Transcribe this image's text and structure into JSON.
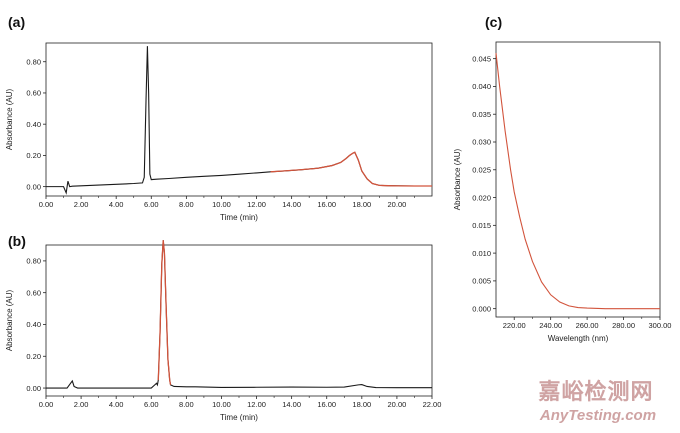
{
  "chart_data": [
    {
      "panel_label": "(a)",
      "type": "line",
      "xlabel": "Time (min)",
      "ylabel": "Absorbance (AU)",
      "xlim": [
        0,
        22
      ],
      "ylim": [
        -0.06,
        0.92
      ],
      "xticks": [
        "0.00",
        "2.00",
        "4.00",
        "6.00",
        "8.00",
        "10.00",
        "12.00",
        "14.00",
        "16.00",
        "18.00",
        "20.00"
      ],
      "yticks": [
        "0.00",
        "0.20",
        "0.40",
        "0.60",
        "0.80"
      ],
      "colors": {
        "axis": "#222222",
        "trace": "#1a1a1a",
        "highlight": "#d2543c"
      },
      "highlight_from_x": 12.8,
      "series": [
        {
          "x": [
            0,
            1.0,
            1.15,
            1.25,
            1.35,
            1.5,
            2.0,
            3.0,
            4.0,
            5.0,
            5.5,
            5.6,
            5.7,
            5.78,
            5.85,
            5.92,
            6.0,
            6.3,
            7.0,
            8.0,
            9.0,
            10.0,
            11.0,
            12.0,
            12.8,
            13.5,
            14.5,
            15.5,
            16.3,
            16.8,
            17.1,
            17.3,
            17.5,
            17.6,
            17.8,
            18.0,
            18.3,
            18.6,
            19.0,
            19.5,
            20.0,
            21.0,
            22.0
          ],
          "y": [
            0.0,
            0.0,
            -0.04,
            0.035,
            0.0,
            0.003,
            0.005,
            0.01,
            0.015,
            0.02,
            0.024,
            0.06,
            0.55,
            0.9,
            0.6,
            0.08,
            0.045,
            0.048,
            0.052,
            0.06,
            0.066,
            0.072,
            0.08,
            0.088,
            0.095,
            0.1,
            0.108,
            0.118,
            0.135,
            0.155,
            0.18,
            0.2,
            0.215,
            0.22,
            0.17,
            0.1,
            0.05,
            0.02,
            0.008,
            0.006,
            0.005,
            0.004,
            0.004
          ]
        }
      ]
    },
    {
      "panel_label": "(b)",
      "type": "line",
      "xlabel": "Time (min)",
      "ylabel": "Absorbance (AU)",
      "xlim": [
        0,
        22
      ],
      "ylim": [
        -0.05,
        0.9
      ],
      "xticks": [
        "0.00",
        "2.00",
        "4.00",
        "6.00",
        "8.00",
        "10.00",
        "12.00",
        "14.00",
        "16.00",
        "18.00",
        "20.00",
        "22.00"
      ],
      "yticks": [
        "0.00",
        "0.20",
        "0.40",
        "0.60",
        "0.80"
      ],
      "colors": {
        "axis": "#222222",
        "trace": "#1a1a1a",
        "highlight": "#d2543c"
      },
      "highlight_x_range": [
        6.4,
        7.1
      ],
      "series": [
        {
          "x": [
            0,
            1.2,
            1.4,
            1.5,
            1.6,
            1.8,
            2.0,
            4.0,
            6.0,
            6.2,
            6.3,
            6.35,
            6.4,
            6.5,
            6.6,
            6.68,
            6.75,
            6.85,
            6.95,
            7.05,
            7.1,
            7.3,
            8.0,
            8.5,
            10.0,
            12.0,
            14.0,
            16.0,
            17.0,
            17.8,
            18.0,
            18.3,
            18.8,
            20.0,
            22.0
          ],
          "y": [
            0.0,
            0.0,
            0.03,
            0.045,
            0.01,
            0.0,
            0.0,
            0.0,
            0.0,
            0.02,
            0.03,
            0.02,
            0.05,
            0.35,
            0.78,
            0.93,
            0.85,
            0.5,
            0.18,
            0.05,
            0.02,
            0.01,
            0.008,
            0.008,
            0.004,
            0.005,
            0.006,
            0.005,
            0.006,
            0.02,
            0.022,
            0.01,
            0.003,
            0.002,
            0.002
          ]
        }
      ]
    },
    {
      "panel_label": "(c)",
      "type": "line",
      "xlabel": "Wavelength (nm)",
      "ylabel": "Absorbance (AU)",
      "xlim": [
        210,
        300
      ],
      "ylim": [
        -0.0015,
        0.048
      ],
      "xticks": [
        "220.00",
        "240.00",
        "260.00",
        "280.00",
        "300.00"
      ],
      "yticks": [
        "0.000",
        "0.005",
        "0.010",
        "0.015",
        "0.020",
        "0.025",
        "0.030",
        "0.035",
        "0.040",
        "0.045"
      ],
      "colors": {
        "axis": "#222222",
        "trace": "#d2543c"
      },
      "series": [
        {
          "x": [
            210,
            212,
            215,
            218,
            220,
            223,
            226,
            230,
            235,
            240,
            245,
            250,
            255,
            260,
            270,
            280,
            290,
            300
          ],
          "y": [
            0.046,
            0.04,
            0.032,
            0.025,
            0.021,
            0.0165,
            0.0125,
            0.0085,
            0.0048,
            0.0025,
            0.0012,
            0.0005,
            0.0002,
            0.0001,
            0.0,
            0.0,
            0.0,
            0.0
          ]
        }
      ]
    }
  ],
  "watermark": {
    "line1": "嘉峪检测网",
    "line2": "AnyTesting.com",
    "color": "#cfa3a3"
  }
}
